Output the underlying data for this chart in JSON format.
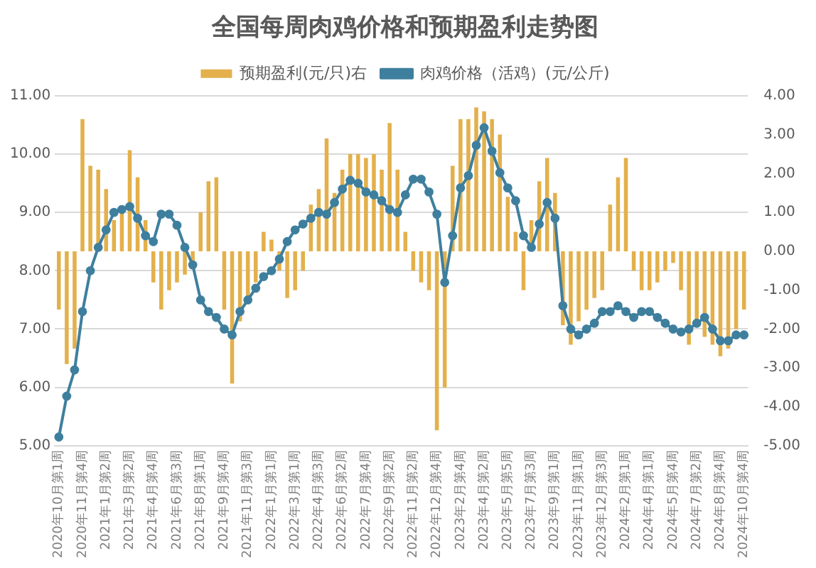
{
  "chart_data": {
    "type": "bar",
    "title": "全国每周肉鸡价格和预期盈利走势图",
    "legend": "top",
    "grid": "y",
    "marker": "circle",
    "categories": [
      "2020年10月第1周",
      null,
      null,
      "2020年11月第4周",
      null,
      null,
      "2021年1月第2周",
      null,
      null,
      "2021年3月第2周",
      null,
      null,
      "2021年4月第4周",
      null,
      null,
      "2021年6月第3周",
      null,
      null,
      "2021年8月第1周",
      null,
      null,
      "2021年9月第4周",
      null,
      null,
      "2021年11月第3周",
      null,
      null,
      "2022年1月第1周",
      null,
      null,
      "2022年3月第1周",
      null,
      null,
      "2022年4月第3周",
      null,
      null,
      "2022年6月第2周",
      null,
      null,
      "2022年7月第4周",
      null,
      null,
      "2022年9月第2周",
      null,
      null,
      "2022年11月第2周",
      null,
      null,
      "2022年12月第4周",
      null,
      null,
      "2023年2月第4周",
      null,
      null,
      "2023年4月第2周",
      null,
      null,
      "2023年5月第5周",
      null,
      null,
      "2023年7月第3周",
      null,
      null,
      "2023年9月第1周",
      null,
      null,
      "2023年11月第1周",
      null,
      null,
      "2023年12月第3周",
      null,
      null,
      "2024年2月第1周",
      null,
      null,
      "2024年4月第1周",
      null,
      null,
      "2024年5月第4周",
      null,
      null,
      "2024年7月第2周",
      null,
      null,
      "2024年8月第4周",
      null,
      null,
      "2024年10月第4周"
    ],
    "ylim": [
      5,
      11
    ],
    "yticks": [
      {
        "value": 5,
        "label": "5.00"
      },
      {
        "value": 6,
        "label": "6.00"
      },
      {
        "value": 7,
        "label": "7.00"
      },
      {
        "value": 8,
        "label": "8.00"
      },
      {
        "value": 9,
        "label": "9.00"
      },
      {
        "value": 10,
        "label": "10.00"
      },
      {
        "value": 11,
        "label": "11.00"
      }
    ],
    "y2lim": [
      -5,
      4
    ],
    "y2ticks": [
      {
        "value": -5,
        "label": "-5.00"
      },
      {
        "value": -4,
        "label": "-4.00"
      },
      {
        "value": -3,
        "label": "-3.00"
      },
      {
        "value": -2,
        "label": "-2.00"
      },
      {
        "value": -1,
        "label": "-1.00"
      },
      {
        "value": 0,
        "label": "0.00"
      },
      {
        "value": 1,
        "label": "1.00"
      },
      {
        "value": 2,
        "label": "2.00"
      },
      {
        "value": 3,
        "label": "3.00"
      },
      {
        "value": 4,
        "label": "4.00"
      }
    ],
    "series": [
      {
        "name": "预期盈利(元/只)右",
        "axis": "y2",
        "color": "#e3b04b",
        "values": [
          -1.5,
          -2.9,
          -2.5,
          3.4,
          2.2,
          2.1,
          1.6,
          0.8,
          1.0,
          2.6,
          1.9,
          0.8,
          -0.8,
          -1.5,
          -1.0,
          -0.8,
          -0.6,
          -0.3,
          1.0,
          1.8,
          1.9,
          -1.5,
          -3.4,
          -1.8,
          -1.2,
          -0.8,
          0.5,
          0.3,
          -0.5,
          -1.2,
          -1.0,
          -0.5,
          1.2,
          1.6,
          2.9,
          1.5,
          2.1,
          2.5,
          2.5,
          2.4,
          2.5,
          2.1,
          3.3,
          2.1,
          0.5,
          -0.5,
          -0.8,
          -1.0,
          -4.6,
          -3.5,
          2.2,
          3.4,
          3.4,
          3.7,
          3.6,
          3.4,
          3.0,
          1.4,
          0.5,
          -1.0,
          0.8,
          1.8,
          2.4,
          1.5,
          -1.9,
          -2.4,
          -1.8,
          -1.5,
          -1.2,
          -1.0,
          1.2,
          1.9,
          2.4,
          -0.5,
          -1.0,
          -1.0,
          -0.8,
          -0.5,
          -0.3,
          -1.0,
          -2.4,
          -1.8,
          -2.2,
          -2.4,
          -2.7,
          -2.5,
          -2.0,
          -1.5
        ]
      },
      {
        "name": "肉鸡价格（活鸡）(元/公斤)",
        "type": "line",
        "axis": "y",
        "color": "#3e7f9e",
        "values": [
          5.15,
          5.85,
          6.3,
          7.3,
          8.0,
          8.4,
          8.7,
          9.0,
          9.05,
          9.1,
          8.9,
          8.6,
          8.5,
          8.97,
          8.97,
          8.78,
          8.4,
          8.1,
          7.5,
          7.3,
          7.2,
          7.0,
          6.9,
          7.3,
          7.5,
          7.7,
          7.9,
          8.0,
          8.2,
          8.5,
          8.7,
          8.8,
          8.9,
          9.0,
          8.97,
          9.17,
          9.4,
          9.55,
          9.5,
          9.35,
          9.3,
          9.2,
          9.05,
          9.0,
          9.3,
          9.57,
          9.57,
          9.35,
          8.97,
          7.8,
          8.6,
          9.42,
          9.63,
          10.15,
          10.45,
          10.05,
          9.68,
          9.42,
          9.2,
          8.6,
          8.4,
          8.8,
          9.17,
          8.9,
          7.4,
          7.0,
          6.9,
          7.0,
          7.1,
          7.3,
          7.3,
          7.4,
          7.3,
          7.2,
          7.3,
          7.3,
          7.2,
          7.1,
          7.0,
          6.95,
          7.0,
          7.1,
          7.2,
          7.0,
          6.8,
          6.8,
          6.9,
          6.9
        ]
      }
    ]
  }
}
